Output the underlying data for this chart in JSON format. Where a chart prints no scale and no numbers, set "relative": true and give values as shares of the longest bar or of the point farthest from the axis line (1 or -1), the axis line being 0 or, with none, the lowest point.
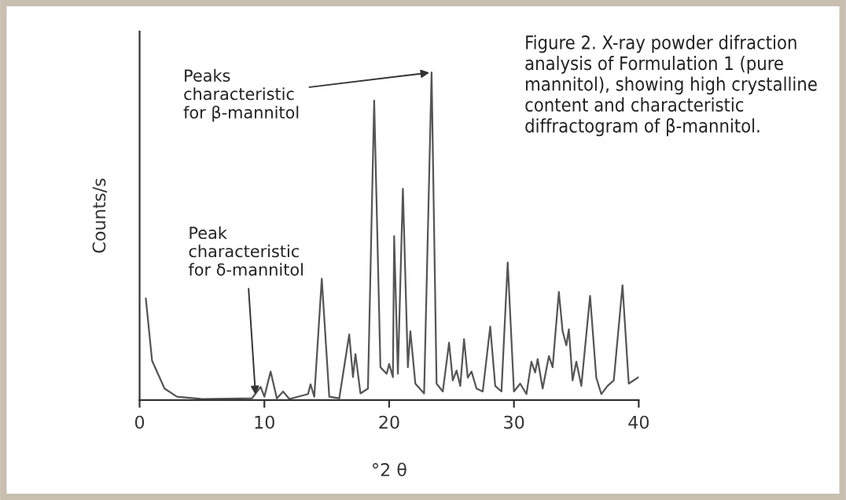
{
  "chart_data": {
    "type": "line",
    "relative": true,
    "title": "Figure 2. X-ray powder difraction analysis of Formulation 1 (pure mannitol), showing high crystalline content and characteristic diffractogram of β-mannitol.",
    "xlabel": "°2 θ",
    "ylabel": "Counts/s",
    "xlim": [
      0,
      40
    ],
    "xticks": [
      0,
      10,
      20,
      30,
      40
    ],
    "grid": false,
    "series": [
      {
        "color": "#555555",
        "x": [
          0.5,
          1,
          2,
          3,
          5,
          9,
          9.7,
          10,
          10.5,
          11,
          11.5,
          12,
          13.5,
          13.7,
          14,
          14.6,
          15.2,
          16,
          16.8,
          17.1,
          17.3,
          17.7,
          18.3,
          18.8,
          19.3,
          19.8,
          20,
          20.3,
          20.4,
          20.7,
          21.1,
          21.5,
          21.7,
          22.1,
          22.8,
          23.4,
          23.8,
          24.3,
          24.8,
          25.1,
          25.4,
          25.7,
          26,
          26.3,
          26.6,
          27,
          27.5,
          28.1,
          28.5,
          29,
          29.5,
          30,
          30.5,
          31,
          31.4,
          31.7,
          31.9,
          32.3,
          32.8,
          33.1,
          33.6,
          33.9,
          34.2,
          34.4,
          34.7,
          35,
          35.4,
          36.1,
          36.6,
          37,
          37.5,
          38,
          38.7,
          39.2,
          39.6,
          40
        ],
        "values": [
          0.31,
          0.12,
          0.035,
          0.01,
          0.003,
          0.005,
          0.04,
          0.01,
          0.087,
          0.005,
          0.026,
          0.003,
          0.018,
          0.048,
          0.01,
          0.37,
          0.01,
          0.005,
          0.2,
          0.07,
          0.14,
          0.02,
          0.035,
          0.914,
          0.1,
          0.08,
          0.11,
          0.07,
          0.5,
          0.08,
          0.645,
          0.1,
          0.21,
          0.05,
          0.02,
          1.0,
          0.05,
          0.026,
          0.175,
          0.06,
          0.09,
          0.043,
          0.186,
          0.068,
          0.087,
          0.035,
          0.026,
          0.224,
          0.043,
          0.026,
          0.42,
          0.026,
          0.05,
          0.018,
          0.117,
          0.084,
          0.125,
          0.035,
          0.134,
          0.1,
          0.33,
          0.21,
          0.167,
          0.216,
          0.06,
          0.117,
          0.043,
          0.318,
          0.068,
          0.018,
          0.043,
          0.06,
          0.35,
          0.05,
          0.06,
          0.07
        ]
      }
    ],
    "annotations": [
      {
        "text": "Peaks\ncharacteristic\nfor β-mannitol",
        "x": 23.4,
        "y": 1.0
      },
      {
        "text": "Peak\ncharacteristic\nfor δ-mannitol",
        "x": 9.3,
        "y": 0.01
      }
    ]
  }
}
